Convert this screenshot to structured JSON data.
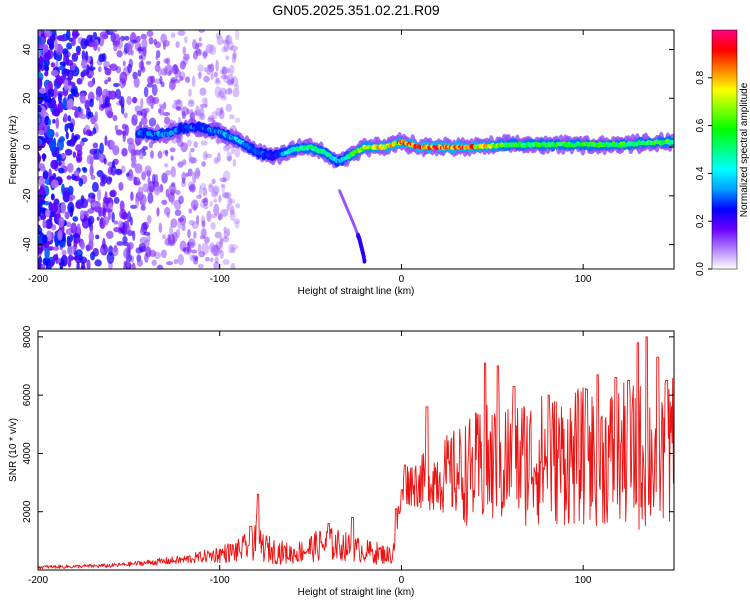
{
  "chart_data": [
    {
      "type": "heatmap",
      "title": "GN05.2025.351.02.21.R09",
      "xlabel": "Height of straight line (km)",
      "ylabel": "Frequency (Hz)",
      "xlim": [
        -200,
        150
      ],
      "ylim": [
        -50,
        48
      ],
      "x_ticks": [
        -200,
        -100,
        0,
        100
      ],
      "y_ticks": [
        -40,
        -20,
        0,
        20,
        40
      ],
      "colorbar": {
        "label": "Normalized spectral amplitude",
        "range": [
          0,
          1
        ],
        "ticks": [
          "0.0",
          "0.2",
          "0.4",
          "0.6",
          "0.8"
        ],
        "colors": [
          "#ffffff",
          "#b080ff",
          "#6a00ff",
          "#0000ff",
          "#00a0ff",
          "#00ffff",
          "#00ff80",
          "#00ff00",
          "#80ff00",
          "#ffff00",
          "#ff8000",
          "#ff0000",
          "#ff0080"
        ]
      },
      "ridge": {
        "x": [
          -145,
          -130,
          -120,
          -110,
          -100,
          -90,
          -80,
          -70,
          -60,
          -50,
          -40,
          -35,
          -30,
          -25,
          -20,
          -10,
          0,
          10,
          20,
          40,
          60,
          80,
          100,
          120,
          140,
          150
        ],
        "frequency": [
          6,
          5,
          8,
          8,
          6,
          3,
          -2,
          -4,
          -1,
          0,
          -3,
          -6,
          -4,
          -2,
          0,
          0,
          2,
          0,
          0,
          0,
          1,
          1,
          1,
          1,
          2,
          2
        ],
        "amplitude": [
          0.3,
          0.35,
          0.3,
          0.3,
          0.35,
          0.4,
          0.3,
          0.25,
          0.5,
          0.55,
          0.5,
          0.35,
          0.5,
          0.7,
          0.7,
          0.8,
          0.85,
          0.9,
          0.9,
          0.85,
          0.6,
          0.6,
          0.6,
          0.6,
          0.6,
          0.6
        ]
      },
      "tail": {
        "x": [
          -34,
          -30,
          -26,
          -23,
          -21,
          -20
        ],
        "frequency": [
          -18,
          -25,
          -32,
          -38,
          -44,
          -48
        ]
      }
    },
    {
      "type": "line",
      "xlabel": "Height of straight line (km)",
      "ylabel": "SNR (10 * v/v)",
      "xlim": [
        -200,
        150
      ],
      "ylim": [
        0,
        8200
      ],
      "x_ticks": [
        -200,
        -100,
        0,
        100
      ],
      "y_ticks": [
        2000,
        4000,
        6000,
        8000
      ],
      "color": "#ee1111",
      "x": [
        -200,
        -180,
        -160,
        -150,
        -140,
        -130,
        -120,
        -110,
        -100,
        -90,
        -85,
        -82,
        -80,
        -78,
        -75,
        -70,
        -65,
        -60,
        -55,
        -50,
        -45,
        -40,
        -35,
        -30,
        -25,
        -20,
        -15,
        -10,
        -5,
        0,
        2,
        5,
        10,
        20,
        30,
        40,
        50,
        60,
        70,
        80,
        90,
        100,
        110,
        120,
        130,
        140,
        150
      ],
      "level": [
        100,
        120,
        150,
        200,
        250,
        300,
        350,
        450,
        550,
        650,
        800,
        1100,
        1200,
        900,
        750,
        650,
        600,
        550,
        650,
        750,
        850,
        900,
        850,
        800,
        700,
        650,
        600,
        550,
        500,
        2500,
        2900,
        3000,
        3000,
        3200,
        3300,
        3400,
        3600,
        3700,
        3800,
        3800,
        3800,
        3900,
        3900,
        3900,
        3900,
        3900,
        4000
      ],
      "spread": [
        60,
        60,
        70,
        80,
        100,
        130,
        150,
        200,
        300,
        400,
        500,
        800,
        900,
        600,
        500,
        450,
        400,
        350,
        400,
        500,
        550,
        600,
        550,
        500,
        450,
        400,
        400,
        350,
        300,
        600,
        700,
        800,
        900,
        1200,
        1600,
        2000,
        2200,
        2400,
        2300,
        2300,
        2300,
        2400,
        2400,
        2500,
        2600,
        2600,
        2600
      ],
      "peaks": [
        {
          "x": -79,
          "y": 2600
        },
        {
          "x": -83,
          "y": 1500
        },
        {
          "x": -27,
          "y": 1800
        },
        {
          "x": -40,
          "y": 1600
        },
        {
          "x": -3,
          "y": 2100
        },
        {
          "x": 2,
          "y": 3600
        },
        {
          "x": 14,
          "y": 5600
        },
        {
          "x": 46,
          "y": 7100
        },
        {
          "x": 53,
          "y": 7000
        },
        {
          "x": 62,
          "y": 6300
        },
        {
          "x": 81,
          "y": 6000
        },
        {
          "x": 102,
          "y": 6200
        },
        {
          "x": 108,
          "y": 6700
        },
        {
          "x": 118,
          "y": 6600
        },
        {
          "x": 125,
          "y": 6500
        },
        {
          "x": 130,
          "y": 7800
        },
        {
          "x": 135,
          "y": 8000
        },
        {
          "x": 141,
          "y": 7300
        },
        {
          "x": 146,
          "y": 6500
        }
      ]
    }
  ]
}
